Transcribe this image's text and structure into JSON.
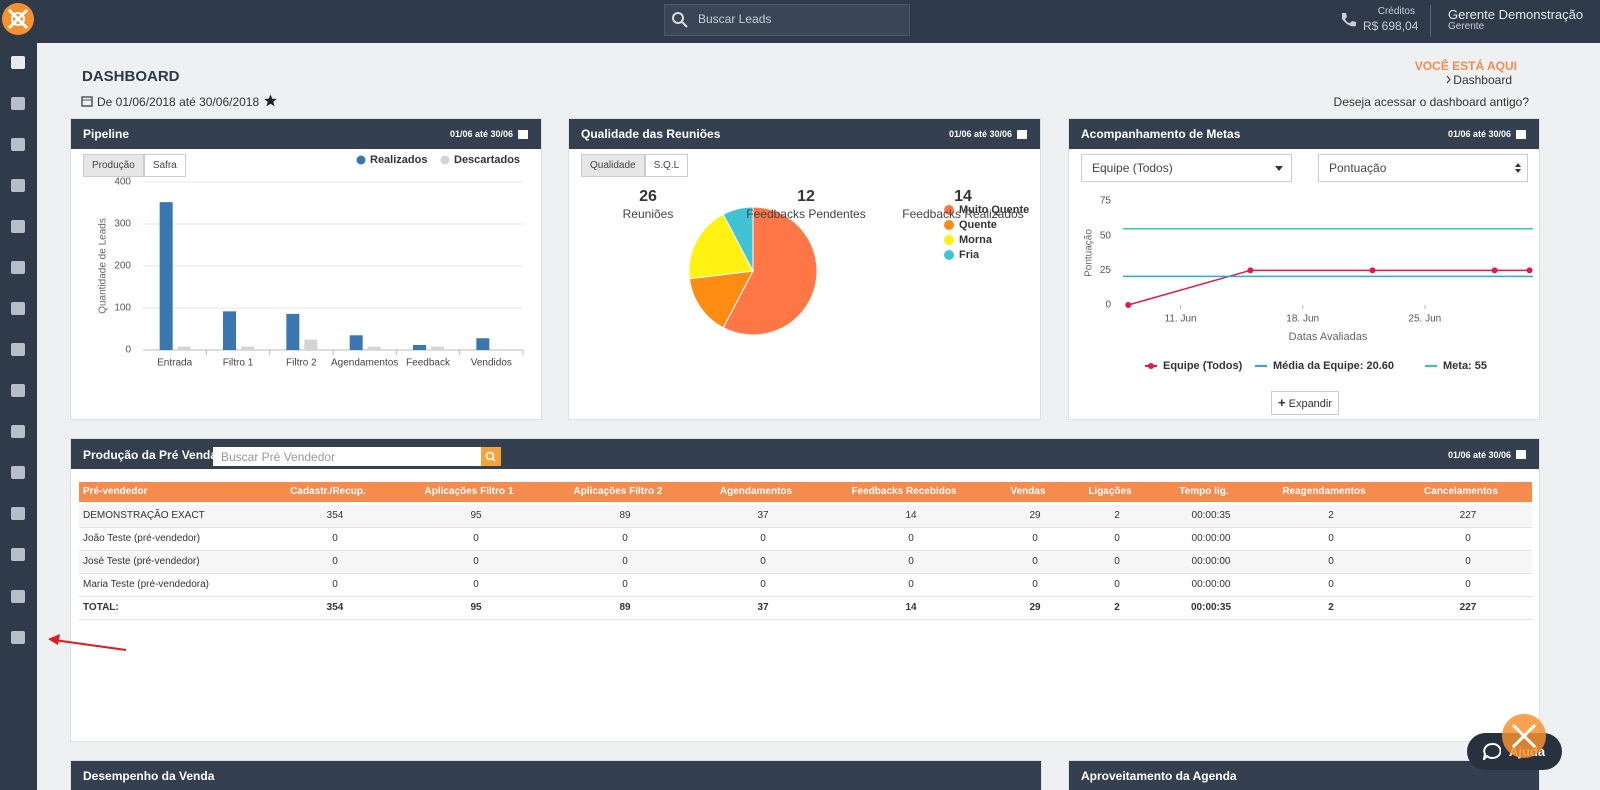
{
  "topbar": {
    "search_placeholder": "Buscar Leads",
    "credits_label": "Créditos",
    "credits_value": "R$ 698,04",
    "user_name": "Gerente Demonstração",
    "user_role": "Gerente"
  },
  "page": {
    "title": "DASHBOARD",
    "date_range": "De 01/06/2018 até 30/06/2018",
    "breadcrumb_label": "VOCÊ ESTÁ AQUI",
    "breadcrumb_item": "Dashboard",
    "old_dashboard_link": "Deseja acessar o dashboard antigo?"
  },
  "pipeline": {
    "title": "Pipeline",
    "date": "01/06 até 30/06",
    "tabs": [
      "Produção",
      "Safra"
    ],
    "chart": {
      "type": "bar",
      "y_label": "Quantidade de Leads",
      "categories": [
        "Entrada",
        "Filtro 1",
        "Filtro 2",
        "Agendamentos",
        "Feedback",
        "Vendidos"
      ],
      "series": [
        {
          "name": "Realizados",
          "color": "#3a76b0",
          "values": [
            352,
            92,
            86,
            35,
            12,
            28
          ]
        },
        {
          "name": "Descartados",
          "color": "#d4d4d4",
          "values": [
            8,
            8,
            25,
            8,
            8,
            0
          ]
        }
      ],
      "ylim": [
        0,
        400
      ],
      "yticks": [
        0,
        100,
        200,
        300,
        400
      ],
      "grid": true
    }
  },
  "quality": {
    "title": "Qualidade das Reuniões",
    "date": "01/06 até 30/06",
    "tabs": [
      "Qualidade",
      "S.Q.L"
    ],
    "stats": [
      {
        "value": 26,
        "label": "Reuniões"
      },
      {
        "value": 12,
        "label": "Feedbacks Pendentes"
      },
      {
        "value": 14,
        "label": "Feedbacks Realizados"
      }
    ],
    "chart": {
      "type": "pie",
      "categories": [
        "Muito Quente",
        "Quente",
        "Morna",
        "Fria"
      ],
      "values": [
        15,
        4,
        5,
        2
      ],
      "colors": [
        "#ff7647",
        "#ff8c12",
        "#fff212",
        "#40c4d4"
      ]
    }
  },
  "goals": {
    "title": "Acompanhamento de Metas",
    "date": "01/06 até 30/06",
    "selects": [
      "Equipe (Todos)",
      "Pontuação"
    ],
    "button": "Expandir",
    "chart": {
      "type": "line",
      "y_label": "Pontuação",
      "x_label": "Datas Avaliadas",
      "x": [
        8,
        15,
        22,
        29,
        31
      ],
      "xlim": [
        7.7,
        31.2
      ],
      "xticks": [
        {
          "value": 11,
          "label": "11. Jun"
        },
        {
          "value": 18,
          "label": "18. Jun"
        },
        {
          "value": 25,
          "label": "25. Jun"
        }
      ],
      "ylim": [
        0,
        75
      ],
      "yticks": [
        0,
        25,
        50,
        75
      ],
      "series": [
        {
          "name": "Equipe (Todos)",
          "color": "#e3194b",
          "values": [
            0,
            25,
            25,
            25,
            25
          ]
        },
        {
          "name": "Média da Equipe: 20.60",
          "color": "#2aa9e0",
          "y": 20.6
        },
        {
          "name": "Meta: 55",
          "color": "#2fcf9a",
          "y": 55
        }
      ]
    }
  },
  "production": {
    "title": "Produção da Pré Venda",
    "search_placeholder": "Buscar Pré Vendedor",
    "date": "01/06 até 30/06",
    "columns": [
      "Pré-vendedor",
      "Cadastr./Recup.",
      "Aplicações Filtro 1",
      "Aplicações Filtro 2",
      "Agendamentos",
      "Feedbacks Recebidos",
      "Vendas",
      "Ligações",
      "Tempo lig.",
      "Reagendamentos",
      "Cancelamentos"
    ],
    "rows": [
      [
        "DEMONSTRAÇÃO EXACT",
        354,
        95,
        89,
        37,
        14,
        29,
        2,
        "00:00:35",
        2,
        227
      ],
      [
        "João Teste (pré-vendedor)",
        0,
        0,
        0,
        0,
        0,
        0,
        0,
        "00:00:00",
        0,
        0
      ],
      [
        "José Teste (pré-vendedor)",
        0,
        0,
        0,
        0,
        0,
        0,
        0,
        "00:00:00",
        0,
        0
      ],
      [
        "Maria Teste (pré-vendedora)",
        0,
        0,
        0,
        0,
        0,
        0,
        0,
        "00:00:00",
        0,
        0
      ]
    ],
    "total": [
      "TOTAL:",
      354,
      95,
      89,
      37,
      14,
      29,
      2,
      "00:00:35",
      2,
      227
    ]
  },
  "bottom_panels": [
    {
      "title": "Desempenho da Venda"
    },
    {
      "title": "Aproveitamento da Agenda"
    }
  ],
  "help": {
    "label": "Ajuda"
  }
}
